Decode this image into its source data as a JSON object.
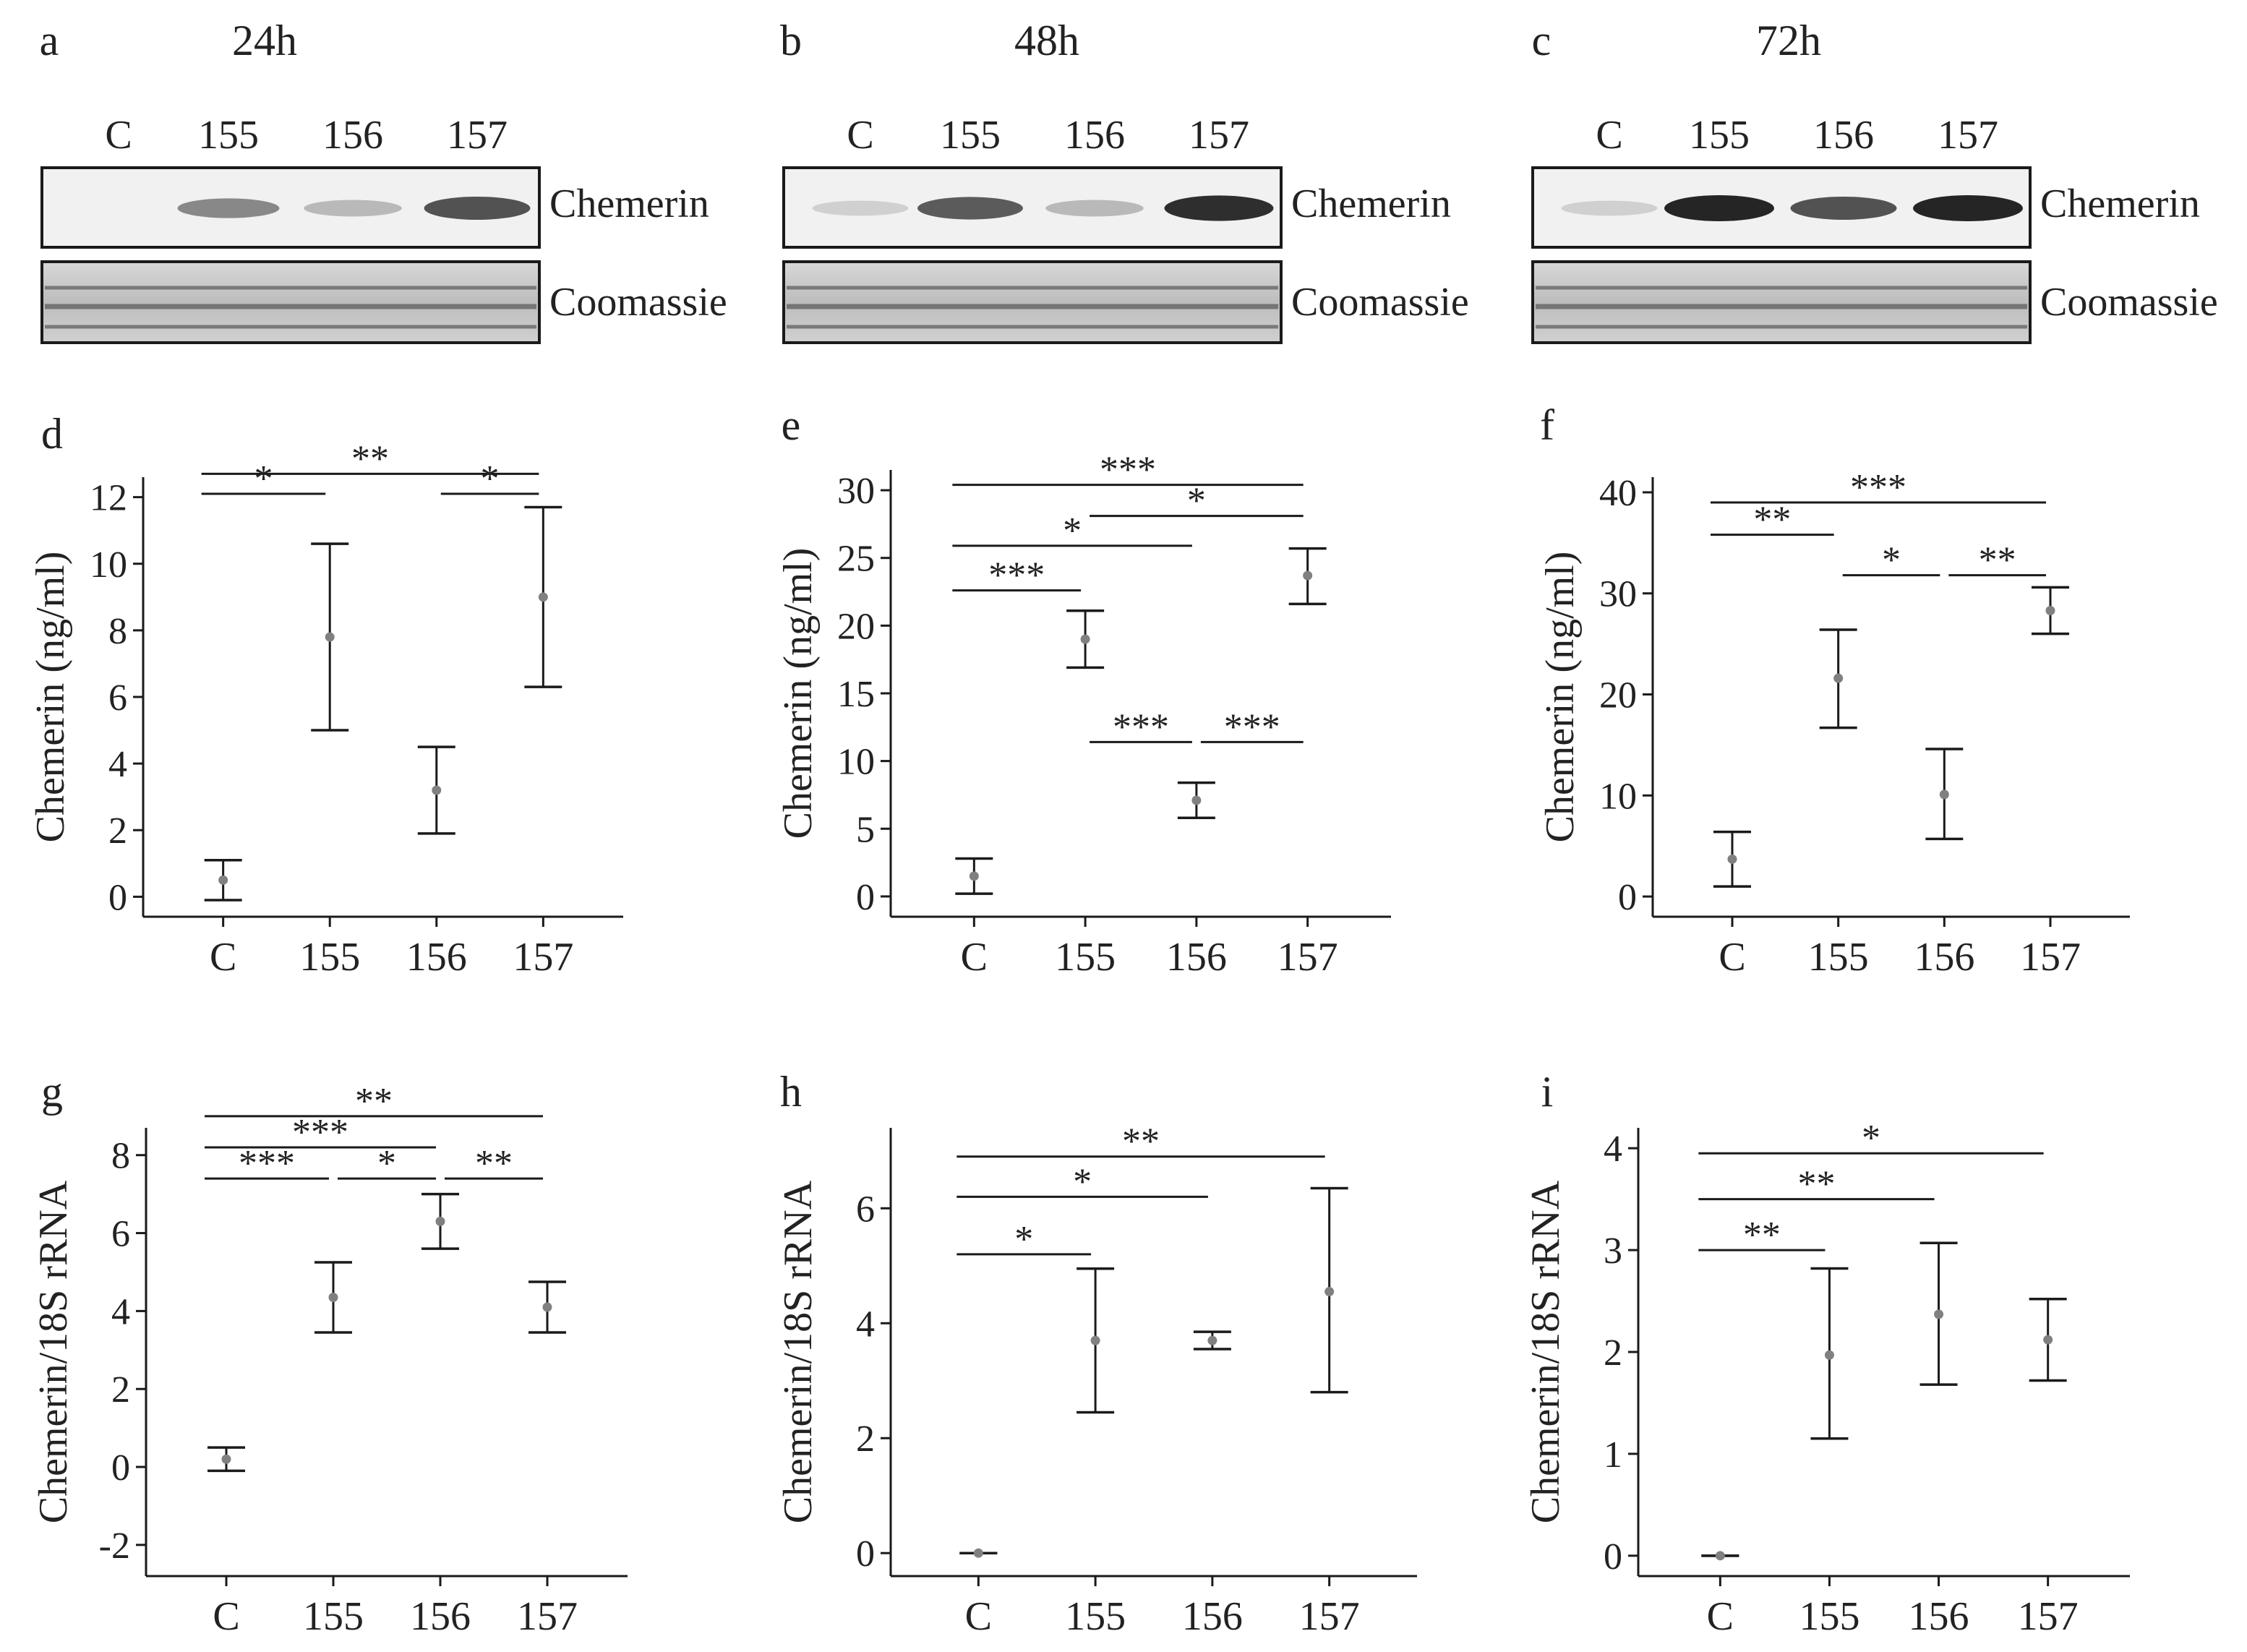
{
  "colors": {
    "ink": "#1a1a1a",
    "point": "#808080",
    "band": "#3a3a3a"
  },
  "western_blots": [
    {
      "panel": "a",
      "time": "24h",
      "lanes": [
        "C",
        "155",
        "156",
        "157"
      ],
      "band_labels": [
        "Chemerin",
        "Coomassie"
      ],
      "chemerin_band_intensity": [
        0.0,
        0.45,
        0.18,
        0.75
      ]
    },
    {
      "panel": "b",
      "time": "48h",
      "lanes": [
        "C",
        "155",
        "156",
        "157"
      ],
      "band_labels": [
        "Chemerin",
        "Coomassie"
      ],
      "chemerin_band_intensity": [
        0.05,
        0.7,
        0.18,
        0.95
      ]
    },
    {
      "panel": "c",
      "time": "72h",
      "lanes": [
        "C",
        "155",
        "156",
        "157"
      ],
      "band_labels": [
        "Chemerin",
        "Coomassie"
      ],
      "chemerin_band_intensity": [
        0.05,
        1.0,
        0.75,
        1.0
      ]
    }
  ],
  "chart_data": [
    {
      "panel": "d",
      "type": "scatter",
      "categories": [
        "C",
        "155",
        "156",
        "157"
      ],
      "means": [
        0.5,
        7.8,
        3.2,
        9.0
      ],
      "err_low": [
        -0.1,
        5.0,
        1.9,
        6.3
      ],
      "err_high": [
        1.1,
        10.6,
        4.5,
        11.7
      ],
      "ylabel": "Chemerin (ng/ml)",
      "ylim": [
        -0.6,
        12.6
      ],
      "yticks": [
        0,
        2,
        4,
        6,
        8,
        10,
        12
      ],
      "significance": [
        {
          "from": 0,
          "to": 3,
          "label": "**",
          "level": 12.7
        },
        {
          "from": 0,
          "to": 1,
          "label": "*",
          "level": 12.1
        },
        {
          "from": 2,
          "to": 3,
          "label": "*",
          "level": 12.1
        }
      ]
    },
    {
      "panel": "e",
      "type": "scatter",
      "categories": [
        "C",
        "155",
        "156",
        "157"
      ],
      "means": [
        1.5,
        19.0,
        7.1,
        23.7
      ],
      "err_low": [
        0.2,
        16.9,
        5.8,
        21.6
      ],
      "err_high": [
        2.8,
        21.1,
        8.4,
        25.7
      ],
      "ylabel": "Chemerin (ng/ml)",
      "ylim": [
        -1.5,
        31.5
      ],
      "yticks": [
        0,
        5,
        10,
        15,
        20,
        25,
        30
      ],
      "significance": [
        {
          "from": 0,
          "to": 3,
          "label": "***",
          "level": 30.4
        },
        {
          "from": 1,
          "to": 3,
          "label": "*",
          "level": 28.1
        },
        {
          "from": 0,
          "to": 2,
          "label": "*",
          "level": 25.9
        },
        {
          "from": 0,
          "to": 1,
          "label": "***",
          "level": 22.6
        },
        {
          "from": 1,
          "to": 2,
          "label": "***",
          "level": 11.4
        },
        {
          "from": 2,
          "to": 3,
          "label": "***",
          "level": 11.4
        }
      ]
    },
    {
      "panel": "f",
      "type": "scatter",
      "categories": [
        "C",
        "155",
        "156",
        "157"
      ],
      "means": [
        3.7,
        21.6,
        10.1,
        28.3
      ],
      "err_low": [
        1.0,
        16.7,
        5.7,
        26.0
      ],
      "err_high": [
        6.4,
        26.4,
        14.6,
        30.6
      ],
      "ylabel": "Chemerin (ng/ml)",
      "ylim": [
        -2,
        41.5
      ],
      "yticks": [
        0,
        10,
        20,
        30,
        40
      ],
      "significance": [
        {
          "from": 0,
          "to": 3,
          "label": "***",
          "level": 39.0
        },
        {
          "from": 0,
          "to": 1,
          "label": "**",
          "level": 35.8
        },
        {
          "from": 1,
          "to": 2,
          "label": "*",
          "level": 31.8
        },
        {
          "from": 2,
          "to": 3,
          "label": "**",
          "level": 31.8
        }
      ]
    },
    {
      "panel": "g",
      "type": "scatter",
      "categories": [
        "C",
        "155",
        "156",
        "157"
      ],
      "means": [
        0.2,
        4.35,
        6.3,
        4.1
      ],
      "err_low": [
        -0.1,
        3.45,
        5.6,
        3.45
      ],
      "err_high": [
        0.5,
        5.25,
        7.0,
        4.75
      ],
      "ylabel": "Chemerin/18S rRNA",
      "ylim": [
        -2.8,
        8.7
      ],
      "yticks": [
        -2,
        0,
        2,
        4,
        6,
        8
      ],
      "significance": [
        {
          "from": 0,
          "to": 3,
          "label": "**",
          "level": 9.0
        },
        {
          "from": 0,
          "to": 2,
          "label": "***",
          "level": 8.2
        },
        {
          "from": 0,
          "to": 1,
          "label": "***",
          "level": 7.4
        },
        {
          "from": 1,
          "to": 2,
          "label": "*",
          "level": 7.4
        },
        {
          "from": 2,
          "to": 3,
          "label": "**",
          "level": 7.4
        }
      ]
    },
    {
      "panel": "h",
      "type": "scatter",
      "categories": [
        "C",
        "155",
        "156",
        "157"
      ],
      "means": [
        0.0,
        3.7,
        3.7,
        4.55
      ],
      "err_low": [
        0.0,
        2.45,
        3.55,
        2.8
      ],
      "err_high": [
        0.0,
        4.95,
        3.85,
        6.35
      ],
      "ylabel": "Chemerin/18S rRNA",
      "ylim": [
        -0.4,
        7.4
      ],
      "yticks": [
        0,
        2,
        4,
        6
      ],
      "significance": [
        {
          "from": 0,
          "to": 3,
          "label": "**",
          "level": 6.9
        },
        {
          "from": 0,
          "to": 2,
          "label": "*",
          "level": 6.2
        },
        {
          "from": 0,
          "to": 1,
          "label": "*",
          "level": 5.2
        }
      ]
    },
    {
      "panel": "i",
      "type": "scatter",
      "categories": [
        "C",
        "155",
        "156",
        "157"
      ],
      "means": [
        0.0,
        1.97,
        2.37,
        2.12
      ],
      "err_low": [
        0.0,
        1.15,
        1.68,
        1.72
      ],
      "err_high": [
        0.0,
        2.82,
        3.07,
        2.52
      ],
      "ylabel": "Chemerin/18S rRNA",
      "ylim": [
        -0.2,
        4.2
      ],
      "yticks": [
        0,
        1,
        2,
        3,
        4
      ],
      "significance": [
        {
          "from": 0,
          "to": 3,
          "label": "*",
          "level": 3.95
        },
        {
          "from": 0,
          "to": 2,
          "label": "**",
          "level": 3.5
        },
        {
          "from": 0,
          "to": 1,
          "label": "**",
          "level": 3.0
        }
      ]
    }
  ]
}
